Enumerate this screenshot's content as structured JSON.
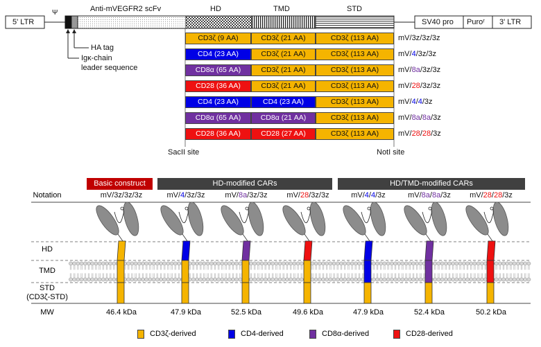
{
  "colors": {
    "cd3z": "#f5b400",
    "cd4": "#0000e6",
    "cd8a": "#7030a0",
    "cd28": "#ee1111",
    "banner_red": "#c00000",
    "banner_dark": "#404040"
  },
  "vector": {
    "ltr5": "5' LTR",
    "psi": "Ψ",
    "scfv": "Anti-mVEGFR2 scFv",
    "hd": "HD",
    "tmd": "TMD",
    "std": "STD",
    "sv40": "SV40 pro",
    "puro": "Puroʳ",
    "ltr3": "3' LTR",
    "ha_tag": "HA tag",
    "leader_line1": "Igκ-chain",
    "leader_line2": "leader sequence",
    "sacii": "SacII site",
    "noti": "NotI site"
  },
  "constructs": [
    {
      "hd": {
        "text": "CD3ζ (9 AA)",
        "c": "cd3z"
      },
      "tmd": {
        "text": "CD3ζ (21 AA)",
        "c": "cd3z"
      },
      "std": {
        "text": "CD3ζ (113 AA)",
        "c": "cd3z"
      },
      "name": [
        [
          "mV/",
          "k"
        ],
        [
          "3z",
          "k"
        ],
        [
          "/",
          "k"
        ],
        [
          "3z",
          "k"
        ],
        [
          "/3z",
          "k"
        ]
      ]
    },
    {
      "hd": {
        "text": "CD4 (23 AA)",
        "c": "cd4"
      },
      "tmd": {
        "text": "CD3ζ (21 AA)",
        "c": "cd3z"
      },
      "std": {
        "text": "CD3ζ (113 AA)",
        "c": "cd3z"
      },
      "name": [
        [
          "mV/",
          "k"
        ],
        [
          "4",
          "cd4"
        ],
        [
          "/",
          "k"
        ],
        [
          "3z",
          "k"
        ],
        [
          "/3z",
          "k"
        ]
      ]
    },
    {
      "hd": {
        "text": "CD8α (65 AA)",
        "c": "cd8a"
      },
      "tmd": {
        "text": "CD3ζ (21 AA)",
        "c": "cd3z"
      },
      "std": {
        "text": "CD3ζ (113 AA)",
        "c": "cd3z"
      },
      "name": [
        [
          "mV/",
          "k"
        ],
        [
          "8a",
          "cd8a"
        ],
        [
          "/",
          "k"
        ],
        [
          "3z",
          "k"
        ],
        [
          "/3z",
          "k"
        ]
      ]
    },
    {
      "hd": {
        "text": "CD28 (36 AA)",
        "c": "cd28"
      },
      "tmd": {
        "text": "CD3ζ (21 AA)",
        "c": "cd3z"
      },
      "std": {
        "text": "CD3ζ (113 AA)",
        "c": "cd3z"
      },
      "name": [
        [
          "mV/",
          "k"
        ],
        [
          "28",
          "cd28"
        ],
        [
          "/",
          "k"
        ],
        [
          "3z",
          "k"
        ],
        [
          "/3z",
          "k"
        ]
      ]
    },
    {
      "hd": {
        "text": "CD4 (23 AA)",
        "c": "cd4"
      },
      "tmd": {
        "text": "CD4 (23 AA)",
        "c": "cd4"
      },
      "std": {
        "text": "CD3ζ (113 AA)",
        "c": "cd3z"
      },
      "name": [
        [
          "mV/",
          "k"
        ],
        [
          "4",
          "cd4"
        ],
        [
          "/",
          "k"
        ],
        [
          "4",
          "cd4"
        ],
        [
          "/3z",
          "k"
        ]
      ]
    },
    {
      "hd": {
        "text": "CD8α (65 AA)",
        "c": "cd8a"
      },
      "tmd": {
        "text": "CD8α (21 AA)",
        "c": "cd8a"
      },
      "std": {
        "text": "CD3ζ (113 AA)",
        "c": "cd3z"
      },
      "name": [
        [
          "mV/",
          "k"
        ],
        [
          "8a",
          "cd8a"
        ],
        [
          "/",
          "k"
        ],
        [
          "8a",
          "cd8a"
        ],
        [
          "/3z",
          "k"
        ]
      ]
    },
    {
      "hd": {
        "text": "CD28 (36 AA)",
        "c": "cd28"
      },
      "tmd": {
        "text": "CD28 (27 AA)",
        "c": "cd28"
      },
      "std": {
        "text": "CD3ζ (113 AA)",
        "c": "cd3z"
      },
      "name": [
        [
          "mV/",
          "k"
        ],
        [
          "28",
          "cd28"
        ],
        [
          "/",
          "k"
        ],
        [
          "28",
          "cd28"
        ],
        [
          "/3z",
          "k"
        ]
      ]
    }
  ],
  "banners": {
    "basic": "Basic construct",
    "hd_mod": "HD-modified CARs",
    "hdtmd_mod": "HD/TMD-modified CARs"
  },
  "row_labels": {
    "notation": "Notation",
    "hd": "HD",
    "tmd": "TMD",
    "std_line1": "STD",
    "std_line2": "(CD3ζ-STD)",
    "mw": "MW"
  },
  "cars": [
    {
      "hd": "cd3z",
      "tmd": "cd3z",
      "mw": "46.4 kDa"
    },
    {
      "hd": "cd4",
      "tmd": "cd3z",
      "mw": "47.9 kDa"
    },
    {
      "hd": "cd8a",
      "tmd": "cd3z",
      "mw": "52.5 kDa"
    },
    {
      "hd": "cd28",
      "tmd": "cd3z",
      "mw": "49.6 kDa"
    },
    {
      "hd": "cd4",
      "tmd": "cd4",
      "mw": "47.9 kDa"
    },
    {
      "hd": "cd8a",
      "tmd": "cd8a",
      "mw": "52.4 kDa"
    },
    {
      "hd": "cd28",
      "tmd": "cd28",
      "mw": "50.2 kDa"
    }
  ],
  "legend": [
    {
      "c": "cd3z",
      "label": "CD3ζ-derived"
    },
    {
      "c": "cd4",
      "label": "CD4-derived"
    },
    {
      "c": "cd8a",
      "label": "CD8α-derived"
    },
    {
      "c": "cd28",
      "label": "CD28-derived"
    }
  ]
}
